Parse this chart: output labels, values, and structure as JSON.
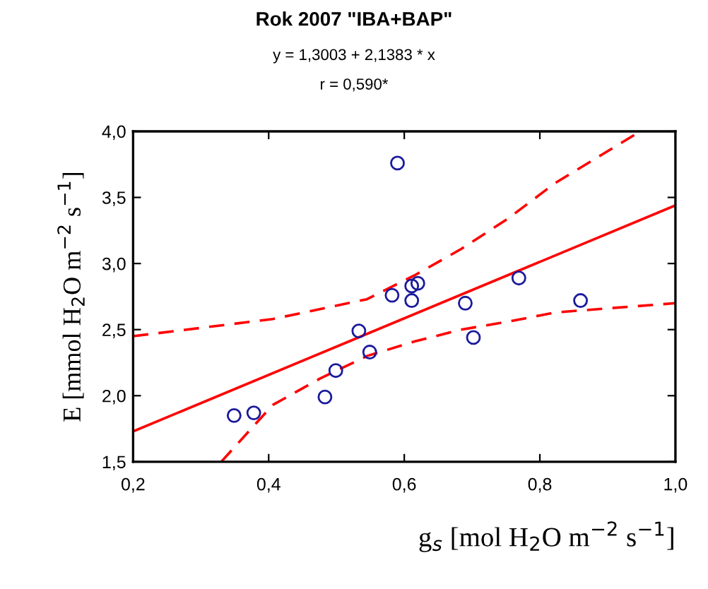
{
  "chart_data": {
    "type": "scatter",
    "title": "Rok 2007 \"IBA+BAP\"",
    "subtitle": "y = 1,3003 + 2,1383 * x",
    "annotations": [
      "r = 0,590*"
    ],
    "xlabel": "g$_{s}$ [mol H$_{2}$O m$^{−2}$ s$^{−1}$]",
    "ylabel": "E [mmol H$_{2}$O m$^{−2}$ s$^{−1}$]",
    "series": [
      {
        "color": "#1a1a9c",
        "marker": "circle",
        "x": [
          0.349,
          0.378,
          0.483,
          0.499,
          0.533,
          0.549,
          0.582,
          0.59,
          0.611,
          0.611,
          0.62,
          0.69,
          0.702,
          0.769,
          0.86
        ],
        "values": [
          1.85,
          1.87,
          1.99,
          2.19,
          2.49,
          2.33,
          2.76,
          3.76,
          2.83,
          2.72,
          2.85,
          2.7,
          2.44,
          2.89,
          2.72
        ]
      },
      {
        "type": "line",
        "color": "#ff0000",
        "line_style": "solid",
        "x": [
          0.2,
          1.0
        ],
        "values": [
          1.73,
          3.44
        ]
      },
      {
        "type": "line",
        "color": "#ff0000",
        "line_style": "dashed",
        "x": [
          0.2,
          0.406,
          0.545,
          0.615,
          0.684,
          0.753,
          0.823,
          0.948
        ],
        "values": [
          2.45,
          2.58,
          2.73,
          2.91,
          3.11,
          3.34,
          3.61,
          4.0
        ]
      },
      {
        "type": "line",
        "color": "#ff0000",
        "line_style": "dashed",
        "x": [
          0.33,
          0.406,
          0.476,
          0.545,
          0.615,
          0.684,
          0.753,
          0.823,
          1.0
        ],
        "values": [
          1.5,
          1.93,
          2.13,
          2.3,
          2.41,
          2.5,
          2.56,
          2.63,
          2.7
        ]
      }
    ],
    "xlim": [
      0.2,
      1.0
    ],
    "xticks": [
      {
        "value": 0.2,
        "label": "0,2"
      },
      {
        "value": 0.4,
        "label": "0,4"
      },
      {
        "value": 0.6,
        "label": "0,6"
      },
      {
        "value": 0.8,
        "label": "0,8"
      },
      {
        "value": 1.0,
        "label": "1,0"
      }
    ],
    "ylim": [
      1.5,
      4.0
    ],
    "yticks": [
      {
        "value": 1.5,
        "label": "1,5"
      },
      {
        "value": 2.0,
        "label": "2,0"
      },
      {
        "value": 2.5,
        "label": "2,5"
      },
      {
        "value": 3.0,
        "label": "3,0"
      },
      {
        "value": 3.5,
        "label": "3,5"
      },
      {
        "value": 4.0,
        "label": "4,0"
      }
    ],
    "grid": false,
    "legend": false
  }
}
